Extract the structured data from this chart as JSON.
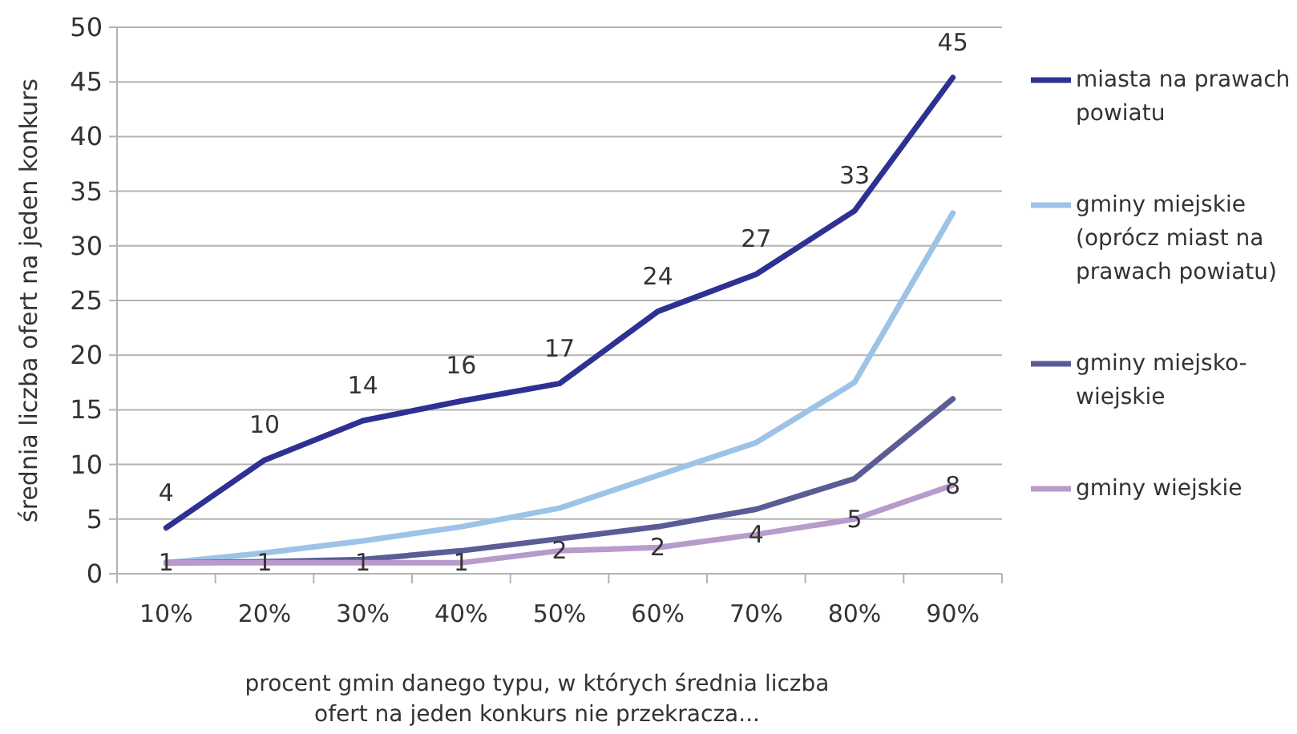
{
  "chart_data": {
    "type": "line",
    "xlabel": "procent gmin danego typu, w których średnia liczba ofert na jeden konkurs nie przekracza...",
    "ylabel": "średnia liczba ofert na jeden konkurs",
    "categories": [
      "10%",
      "20%",
      "30%",
      "40%",
      "50%",
      "60%",
      "70%",
      "80%",
      "90%"
    ],
    "series": [
      {
        "name": "miasta na prawach powiatu",
        "color": "#2e3192",
        "values": [
          4.2,
          10.4,
          14.0,
          15.8,
          17.4,
          24.0,
          27.4,
          33.2,
          45.4
        ],
        "value_labels": [
          "4",
          "10",
          "14",
          "16",
          "17",
          "24",
          "27",
          "33",
          "45"
        ]
      },
      {
        "name": "gminy miejskie (oprócz miast na prawach powiatu)",
        "color": "#9dc3e6",
        "values": [
          1.0,
          1.9,
          3.0,
          4.3,
          6.0,
          9.0,
          12.0,
          17.5,
          33.0
        ]
      },
      {
        "name": "gminy miejsko-wiejskie",
        "color": "#5b5b95",
        "values": [
          1.0,
          1.1,
          1.3,
          2.1,
          3.2,
          4.3,
          5.9,
          8.7,
          16.0
        ]
      },
      {
        "name": "gminy wiejskie",
        "color": "#b79bcc",
        "values": [
          1.0,
          1.0,
          1.0,
          1.0,
          2.1,
          2.4,
          3.6,
          5.0,
          8.1
        ],
        "value_labels": [
          "1",
          "1",
          "1",
          "1",
          "2",
          "2",
          "4",
          "5",
          "8"
        ]
      }
    ],
    "ylim": [
      0,
      50
    ],
    "yticks": [
      0,
      5,
      10,
      15,
      20,
      25,
      30,
      35,
      40,
      45,
      50
    ],
    "grid": "y",
    "legend": "right"
  }
}
